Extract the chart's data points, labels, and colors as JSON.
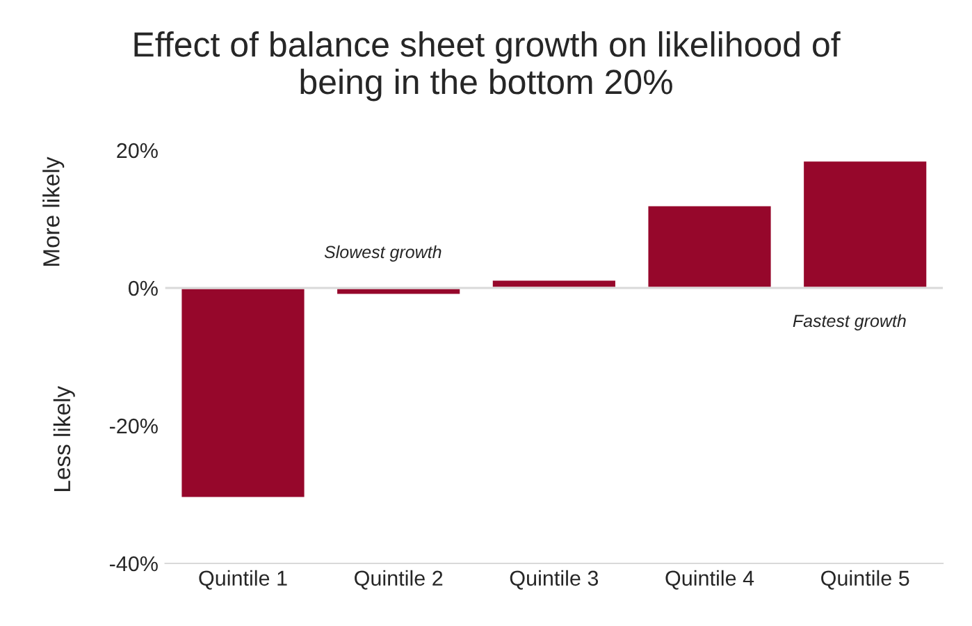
{
  "chart_data": {
    "type": "bar",
    "title": "Effect of balance sheet growth on likelihood of\nbeing in the bottom 20%",
    "ylabel": "More likely",
    "categories": [
      "Quintile 1",
      "Quintile 2",
      "Quintile 3",
      "Quintile 4",
      "Quintile 5"
    ],
    "values": [
      -30.5,
      -1,
      1.2,
      12,
      18.5
    ],
    "color": "#96072b",
    "ylim": [
      -40,
      20
    ],
    "yticks": [
      {
        "value": -40,
        "label": "-40%"
      },
      {
        "value": -20,
        "label": "-20%"
      },
      {
        "value": 0,
        "label": "0%"
      },
      {
        "value": 20,
        "label": "20%"
      }
    ],
    "annotations": [
      "Slowest growth",
      "Fastest growth",
      "Less likely"
    ],
    "ref_lines": [
      {
        "axis": "y",
        "value": 0,
        "color": "#d9d9d9"
      }
    ],
    "legend": false
  }
}
